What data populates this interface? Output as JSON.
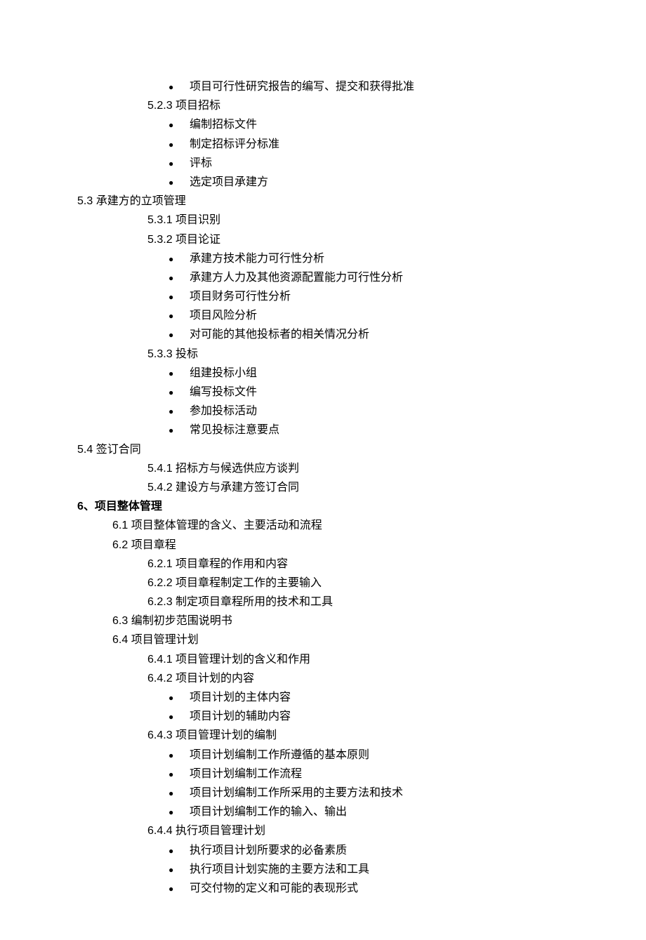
{
  "lines": [
    {
      "type": "bullet",
      "text": "项目可行性研究报告的编写、提交和获得批准"
    },
    {
      "type": "plain",
      "level": "l3",
      "text": "5.2.3 项目招标"
    },
    {
      "type": "bullet",
      "text": "编制招标文件"
    },
    {
      "type": "bullet",
      "text": "制定招标评分标准"
    },
    {
      "type": "bullet",
      "text": "评标"
    },
    {
      "type": "bullet",
      "text": "选定项目承建方"
    },
    {
      "type": "plain",
      "level": "l1",
      "text": "5.3 承建方的立项管理"
    },
    {
      "type": "plain",
      "level": "l3",
      "text": "5.3.1 项目识别"
    },
    {
      "type": "plain",
      "level": "l3",
      "text": "5.3.2 项目论证"
    },
    {
      "type": "bullet",
      "text": "承建方技术能力可行性分析"
    },
    {
      "type": "bullet",
      "text": "承建方人力及其他资源配置能力可行性分析"
    },
    {
      "type": "bullet",
      "text": "项目财务可行性分析"
    },
    {
      "type": "bullet",
      "text": "项目风险分析"
    },
    {
      "type": "bullet",
      "text": "对可能的其他投标者的相关情况分析"
    },
    {
      "type": "plain",
      "level": "l3",
      "text": "5.3.3 投标"
    },
    {
      "type": "bullet",
      "text": "组建投标小组"
    },
    {
      "type": "bullet",
      "text": "编写投标文件"
    },
    {
      "type": "bullet",
      "text": "参加投标活动"
    },
    {
      "type": "bullet",
      "text": "常见投标注意要点"
    },
    {
      "type": "plain",
      "level": "l1",
      "text": "5.4 签订合同"
    },
    {
      "type": "plain",
      "level": "l4",
      "text": "5.4.1 招标方与候选供应方谈判"
    },
    {
      "type": "plain",
      "level": "l4",
      "text": "5.4.2 建设方与承建方签订合同"
    },
    {
      "type": "heading",
      "level": "l1",
      "text": "6、项目整体管理"
    },
    {
      "type": "plain",
      "level": "l2",
      "text": "6.1 项目整体管理的含义、主要活动和流程"
    },
    {
      "type": "plain",
      "level": "l2",
      "text": "6.2 项目章程"
    },
    {
      "type": "plain",
      "level": "l4",
      "text": "6.2.1 项目章程的作用和内容"
    },
    {
      "type": "plain",
      "level": "l4",
      "text": "6.2.2 项目章程制定工作的主要输入"
    },
    {
      "type": "plain",
      "level": "l4",
      "text": "6.2.3 制定项目章程所用的技术和工具"
    },
    {
      "type": "plain",
      "level": "l2",
      "text": "6.3 编制初步范围说明书"
    },
    {
      "type": "plain",
      "level": "l2",
      "text": "6.4 项目管理计划"
    },
    {
      "type": "plain",
      "level": "l4",
      "text": "6.4.1 项目管理计划的含义和作用"
    },
    {
      "type": "plain",
      "level": "l4",
      "text": "6.4.2 项目计划的内容"
    },
    {
      "type": "bullet",
      "text": "项目计划的主体内容"
    },
    {
      "type": "bullet",
      "text": "项目计划的辅助内容"
    },
    {
      "type": "plain",
      "level": "l4",
      "text": "6.4.3 项目管理计划的编制"
    },
    {
      "type": "bullet",
      "text": "项目计划编制工作所遵循的基本原则"
    },
    {
      "type": "bullet",
      "text": "项目计划编制工作流程"
    },
    {
      "type": "bullet",
      "text": "项目计划编制工作所采用的主要方法和技术"
    },
    {
      "type": "bullet",
      "text": "项目计划编制工作的输入、输出"
    },
    {
      "type": "plain",
      "level": "l4",
      "text": "6.4.4 执行项目管理计划"
    },
    {
      "type": "bullet",
      "text": "执行项目计划所要求的必备素质"
    },
    {
      "type": "bullet",
      "text": "执行项目计划实施的主要方法和工具"
    },
    {
      "type": "bullet",
      "text": "可交付物的定义和可能的表现形式"
    }
  ],
  "style": {
    "background_color": "#ffffff",
    "text_color": "#000000",
    "font_size_pt": 12,
    "line_height": 1.7,
    "bullet_char": "●"
  }
}
